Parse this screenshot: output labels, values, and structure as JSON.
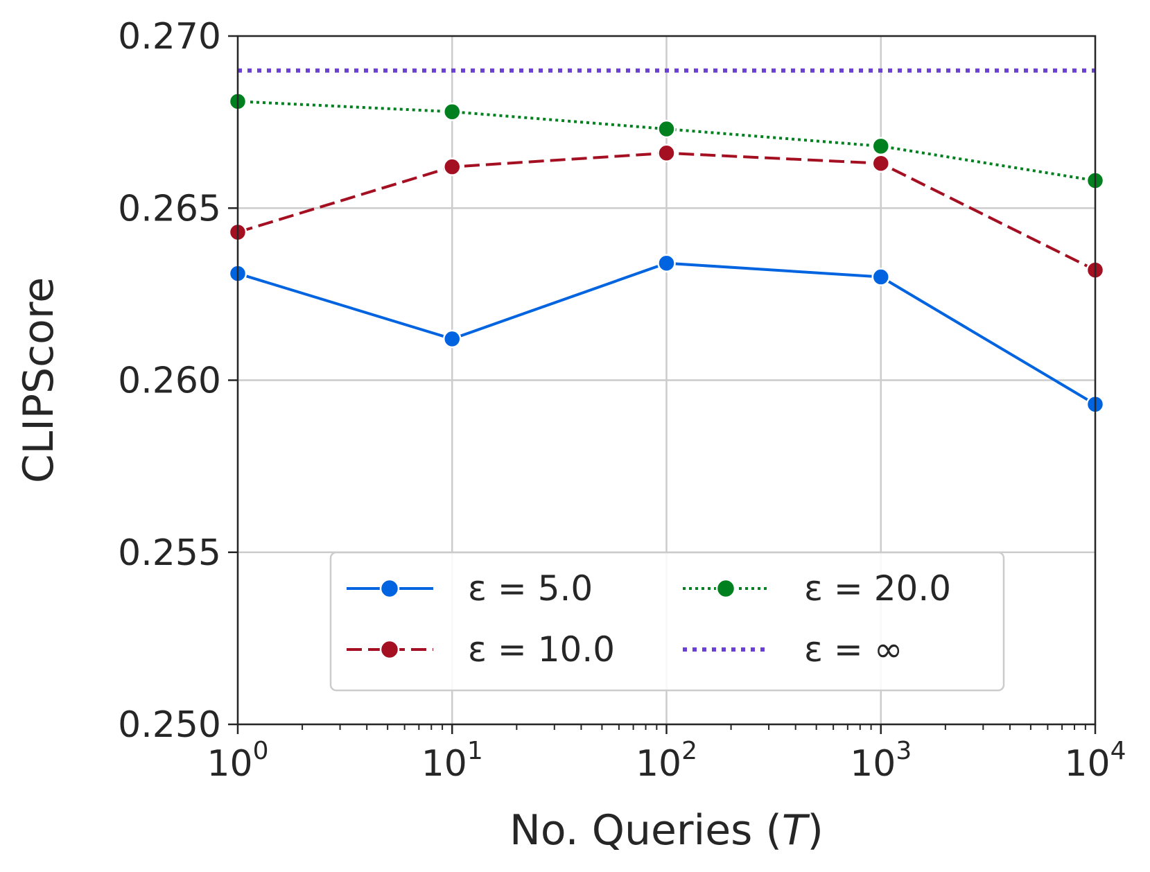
{
  "chart_data": {
    "type": "line",
    "title": "",
    "xlabel_prefix": "No. Queries (",
    "xlabel_var": "T",
    "xlabel_suffix": ")",
    "ylabel": "CLIPScore",
    "x_scale": "log",
    "x": [
      1,
      10,
      100,
      1000,
      10000
    ],
    "xlim": [
      1,
      10000
    ],
    "ylim": [
      0.25,
      0.27
    ],
    "y_ticks": [
      "0.250",
      "0.255",
      "0.260",
      "0.265",
      "0.270"
    ],
    "x_ticks": [
      {
        "base": "10",
        "exp": "0"
      },
      {
        "base": "10",
        "exp": "1"
      },
      {
        "base": "10",
        "exp": "2"
      },
      {
        "base": "10",
        "exp": "3"
      },
      {
        "base": "10",
        "exp": "4"
      }
    ],
    "grid": true,
    "legend_position": "bottom-center",
    "series": [
      {
        "name": "ε =  5.0",
        "color": "#0064e1",
        "style": "solid",
        "marker": "circle",
        "values": [
          0.2631,
          0.2612,
          0.2634,
          0.263,
          0.2593
        ]
      },
      {
        "name": "ε =  10.0",
        "color": "#a50f22",
        "style": "dashed",
        "marker": "circle",
        "values": [
          0.2643,
          0.2662,
          0.2666,
          0.2663,
          0.2632
        ]
      },
      {
        "name": "ε =  20.0",
        "color": "#00801e",
        "style": "dotted",
        "marker": "circle",
        "values": [
          0.2681,
          0.2678,
          0.2673,
          0.2668,
          0.2658
        ]
      },
      {
        "name": "ε = ∞",
        "color": "#6a3fd4",
        "style": "dotted-thick",
        "marker": "none",
        "values": [
          0.269,
          0.269,
          0.269,
          0.269,
          0.269
        ]
      }
    ],
    "legend_order": [
      0,
      2,
      1,
      3
    ]
  }
}
